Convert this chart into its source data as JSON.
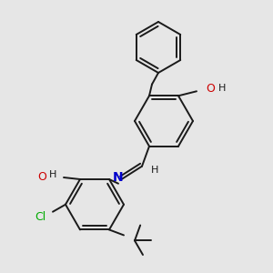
{
  "bg_color": "#e6e6e6",
  "bond_color": "#1a1a1a",
  "lw": 1.4,
  "atom_colors": {
    "O": "#cc0000",
    "N": "#0000cc",
    "Cl": "#00aa00",
    "C": "#1a1a1a",
    "H": "#1a1a1a"
  },
  "font_size": 9,
  "font_size_h": 8
}
